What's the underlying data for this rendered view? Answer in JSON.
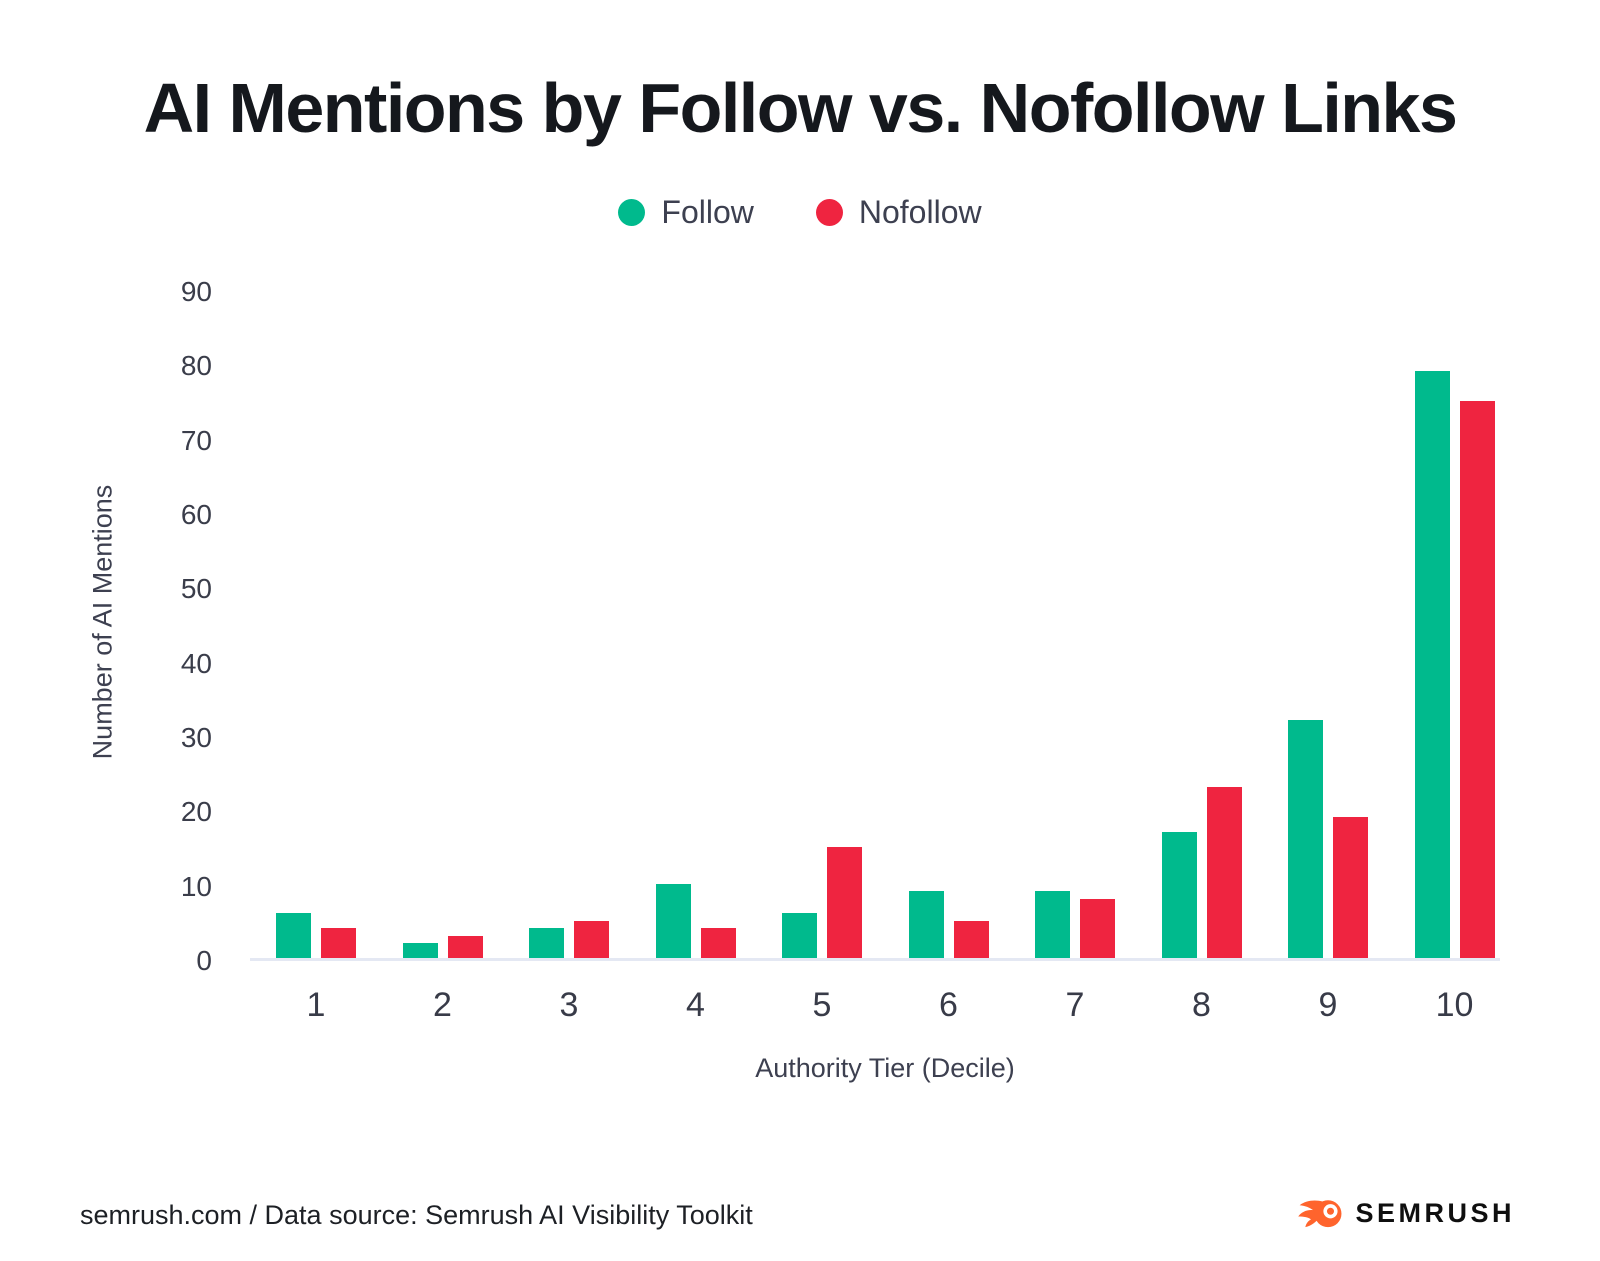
{
  "title": "AI Mentions by Follow vs. Nofollow Links",
  "legend": {
    "follow": "Follow",
    "nofollow": "Nofollow"
  },
  "colors": {
    "follow": "#00ba8d",
    "nofollow": "#ef2440",
    "logo_orange": "#ff642d",
    "baseline": "#e4e8f3"
  },
  "chart_data": {
    "type": "bar",
    "categories": [
      "1",
      "2",
      "3",
      "4",
      "5",
      "6",
      "7",
      "8",
      "9",
      "10"
    ],
    "series": [
      {
        "name": "Follow",
        "values": [
          6,
          2,
          4,
          10,
          6,
          9,
          9,
          17,
          32,
          79
        ]
      },
      {
        "name": "Nofollow",
        "values": [
          4,
          3,
          5,
          4,
          15,
          5,
          8,
          23,
          19,
          75
        ]
      }
    ],
    "title": "AI Mentions by Follow vs. Nofollow Links",
    "xlabel": "Authority Tier (Decile)",
    "ylabel": "Number of AI Mentions",
    "ylim": [
      0,
      90
    ],
    "ytick_step": 10,
    "grid": false,
    "legend_position": "top"
  },
  "footer": {
    "source": "semrush.com / Data source: Semrush AI Visibility Toolkit",
    "logo_text": "SEMRUSH"
  }
}
